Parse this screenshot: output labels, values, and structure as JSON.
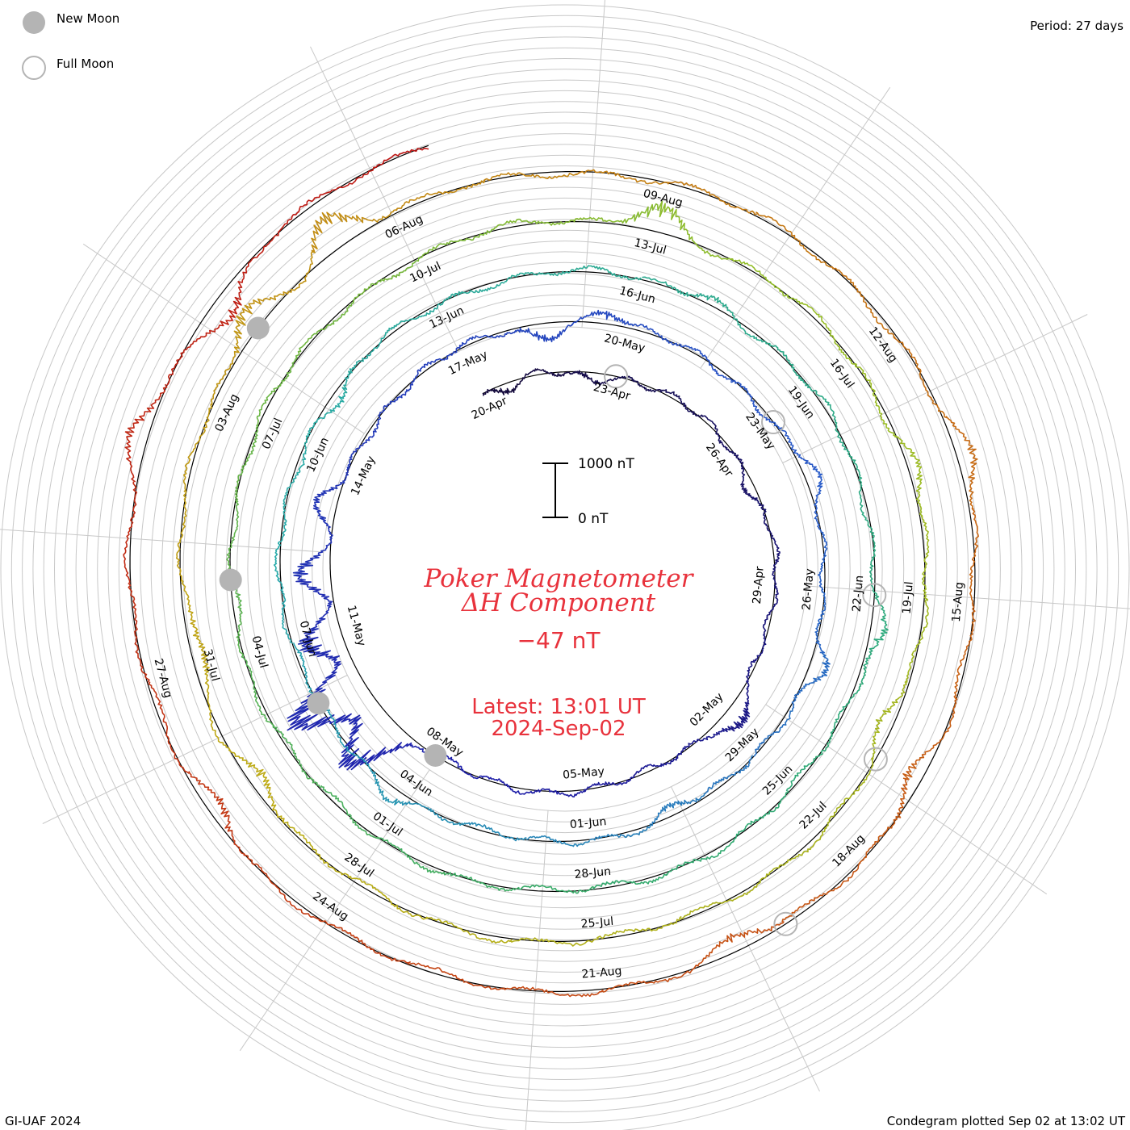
{
  "header": {
    "period_label": "Period: 27 days"
  },
  "legend": {
    "new_moon_label": "New Moon",
    "full_moon_label": "Full Moon",
    "new_moon_color": "#b4b4b4",
    "full_moon_color": "#b4b4b4"
  },
  "center": {
    "title_line1": "Poker Magnetometer",
    "title_line2": "ΔH Component",
    "current_value": "−47 nT",
    "latest_line1": "Latest: 13:01 UT",
    "latest_line2": "2024-Sep-02",
    "text_color": "#e8323c"
  },
  "scale_bar": {
    "top_label": "1000 nT",
    "bottom_label": "0 nT",
    "top_value_nT": 1000,
    "bottom_value_nT": 0
  },
  "footer": {
    "credit": "GI-UAF 2024",
    "plotted": "Condegram plotted Sep 02 at 13:02 UT"
  },
  "chart_data": {
    "type": "line",
    "subtype": "condegram-spiral",
    "period_days": 27,
    "start_date": "2024-04-20",
    "end_date": "2024-09-02",
    "latest_value_nT": -47,
    "scale_nT": 1000,
    "grid": true,
    "spoke_count": 12,
    "date_labels": [
      {
        "label": "20-Apr",
        "day": 0
      },
      {
        "label": "23-Apr",
        "day": 3
      },
      {
        "label": "26-Apr",
        "day": 6
      },
      {
        "label": "29-Apr",
        "day": 9
      },
      {
        "label": "02-May",
        "day": 12
      },
      {
        "label": "05-May",
        "day": 15
      },
      {
        "label": "08-May",
        "day": 18
      },
      {
        "label": "11-May",
        "day": 21
      },
      {
        "label": "14-May",
        "day": 24
      },
      {
        "label": "17-May",
        "day": 27
      },
      {
        "label": "20-May",
        "day": 30
      },
      {
        "label": "23-May",
        "day": 33
      },
      {
        "label": "26-May",
        "day": 36
      },
      {
        "label": "29-May",
        "day": 39
      },
      {
        "label": "01-Jun",
        "day": 42
      },
      {
        "label": "04-Jun",
        "day": 45
      },
      {
        "label": "07-Jun",
        "day": 48
      },
      {
        "label": "10-Jun",
        "day": 51
      },
      {
        "label": "13-Jun",
        "day": 54
      },
      {
        "label": "16-Jun",
        "day": 57
      },
      {
        "label": "19-Jun",
        "day": 60
      },
      {
        "label": "22-Jun",
        "day": 63
      },
      {
        "label": "25-Jun",
        "day": 66
      },
      {
        "label": "28-Jun",
        "day": 69
      },
      {
        "label": "01-Jul",
        "day": 72
      },
      {
        "label": "04-Jul",
        "day": 75
      },
      {
        "label": "07-Jul",
        "day": 78
      },
      {
        "label": "10-Jul",
        "day": 81
      },
      {
        "label": "13-Jul",
        "day": 84
      },
      {
        "label": "16-Jul",
        "day": 87
      },
      {
        "label": "19-Jul",
        "day": 90
      },
      {
        "label": "22-Jul",
        "day": 93
      },
      {
        "label": "25-Jul",
        "day": 96
      },
      {
        "label": "28-Jul",
        "day": 99
      },
      {
        "label": "31-Jul",
        "day": 102
      },
      {
        "label": "03-Aug",
        "day": 105
      },
      {
        "label": "06-Aug",
        "day": 108
      },
      {
        "label": "09-Aug",
        "day": 111
      },
      {
        "label": "12-Aug",
        "day": 114
      },
      {
        "label": "15-Aug",
        "day": 117
      },
      {
        "label": "18-Aug",
        "day": 120
      },
      {
        "label": "21-Aug",
        "day": 123
      },
      {
        "label": "24-Aug",
        "day": 126
      },
      {
        "label": "27-Aug",
        "day": 129
      }
    ],
    "new_moons": [
      "2024-05-08",
      "2024-06-06",
      "2024-07-05",
      "2024-08-04"
    ],
    "full_moons": [
      "2024-04-23",
      "2024-05-23",
      "2024-06-22",
      "2024-07-21",
      "2024-08-19"
    ],
    "disturbances": [
      {
        "day": 0.5,
        "amplitude_nT": -220
      },
      {
        "day": 2.5,
        "amplitude_nT": -130
      },
      {
        "day": 7.0,
        "amplitude_nT": -160
      },
      {
        "day": 11.7,
        "amplitude_nT": 450
      },
      {
        "day": 19.0,
        "amplitude_nT": 1300
      },
      {
        "day": 19.9,
        "amplitude_nT": 1700
      },
      {
        "day": 20.9,
        "amplitude_nT": 900
      },
      {
        "day": 22.0,
        "amplitude_nT": 700
      },
      {
        "day": 23.3,
        "amplitude_nT": 350
      },
      {
        "day": 28.5,
        "amplitude_nT": -300
      },
      {
        "day": 29.6,
        "amplitude_nT": 250
      },
      {
        "day": 34.0,
        "amplitude_nT": 250
      },
      {
        "day": 37.2,
        "amplitude_nT": 300
      },
      {
        "day": 40.5,
        "amplitude_nT": -200
      },
      {
        "day": 45.2,
        "amplitude_nT": 180
      },
      {
        "day": 52.0,
        "amplitude_nT": -200
      },
      {
        "day": 58.0,
        "amplitude_nT": 200
      },
      {
        "day": 63.5,
        "amplitude_nT": 250
      },
      {
        "day": 75.5,
        "amplitude_nT": -150
      },
      {
        "day": 84.0,
        "amplitude_nT": 600
      },
      {
        "day": 88.5,
        "amplitude_nT": 250
      },
      {
        "day": 91.5,
        "amplitude_nT": -250
      },
      {
        "day": 100.5,
        "amplitude_nT": -350
      },
      {
        "day": 102.2,
        "amplitude_nT": -300
      },
      {
        "day": 106.0,
        "amplitude_nT": 500
      },
      {
        "day": 107.3,
        "amplitude_nT": 650
      },
      {
        "day": 115.5,
        "amplitude_nT": 300
      },
      {
        "day": 119.0,
        "amplitude_nT": -350
      },
      {
        "day": 121.5,
        "amplitude_nT": -280
      },
      {
        "day": 127.5,
        "amplitude_nT": -300
      },
      {
        "day": 131.5,
        "amplitude_nT": 400
      },
      {
        "day": 133.0,
        "amplitude_nT": -450
      }
    ]
  }
}
